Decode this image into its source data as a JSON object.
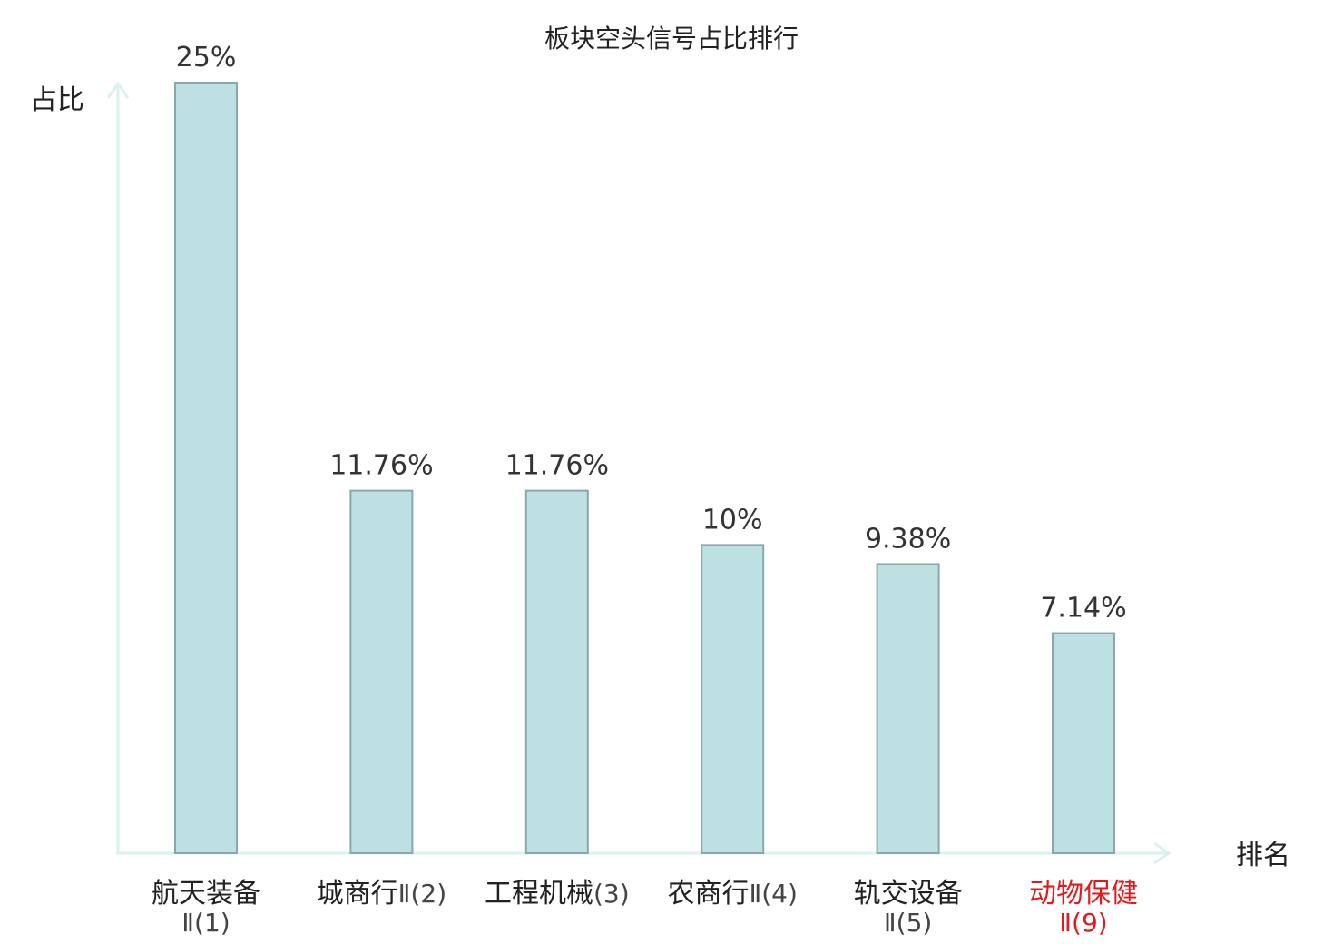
{
  "chart_data": {
    "type": "bar",
    "title": "板块空头信号占比排行",
    "ylabel": "占比",
    "xlabel": "排名",
    "ylim": [
      0,
      25
    ],
    "grid": false,
    "categories": [
      {
        "name": "航天装备",
        "suffix": "Ⅱ(1)",
        "wrap": true,
        "highlight": false
      },
      {
        "name": "城商行",
        "suffix": "Ⅱ(2)",
        "wrap": false,
        "highlight": false
      },
      {
        "name": "工程机械",
        "suffix": "(3)",
        "wrap": false,
        "highlight": false
      },
      {
        "name": "农商行",
        "suffix": "Ⅱ(4)",
        "wrap": false,
        "highlight": false
      },
      {
        "name": "轨交设备",
        "suffix": "Ⅱ(5)",
        "wrap": true,
        "highlight": false
      },
      {
        "name": "动物保健",
        "suffix": "Ⅱ(9)",
        "wrap": true,
        "highlight": true
      }
    ],
    "values": [
      25,
      11.76,
      11.76,
      10,
      9.38,
      7.14
    ],
    "value_labels": [
      "25%",
      "11.76%",
      "11.76%",
      "10%",
      "9.38%",
      "7.14%"
    ],
    "colors": {
      "bar_fill": "#bde0e2",
      "bar_stroke": "#8aa8aa",
      "axis": "#dcf1ee",
      "highlight": "#e31a1c"
    }
  }
}
